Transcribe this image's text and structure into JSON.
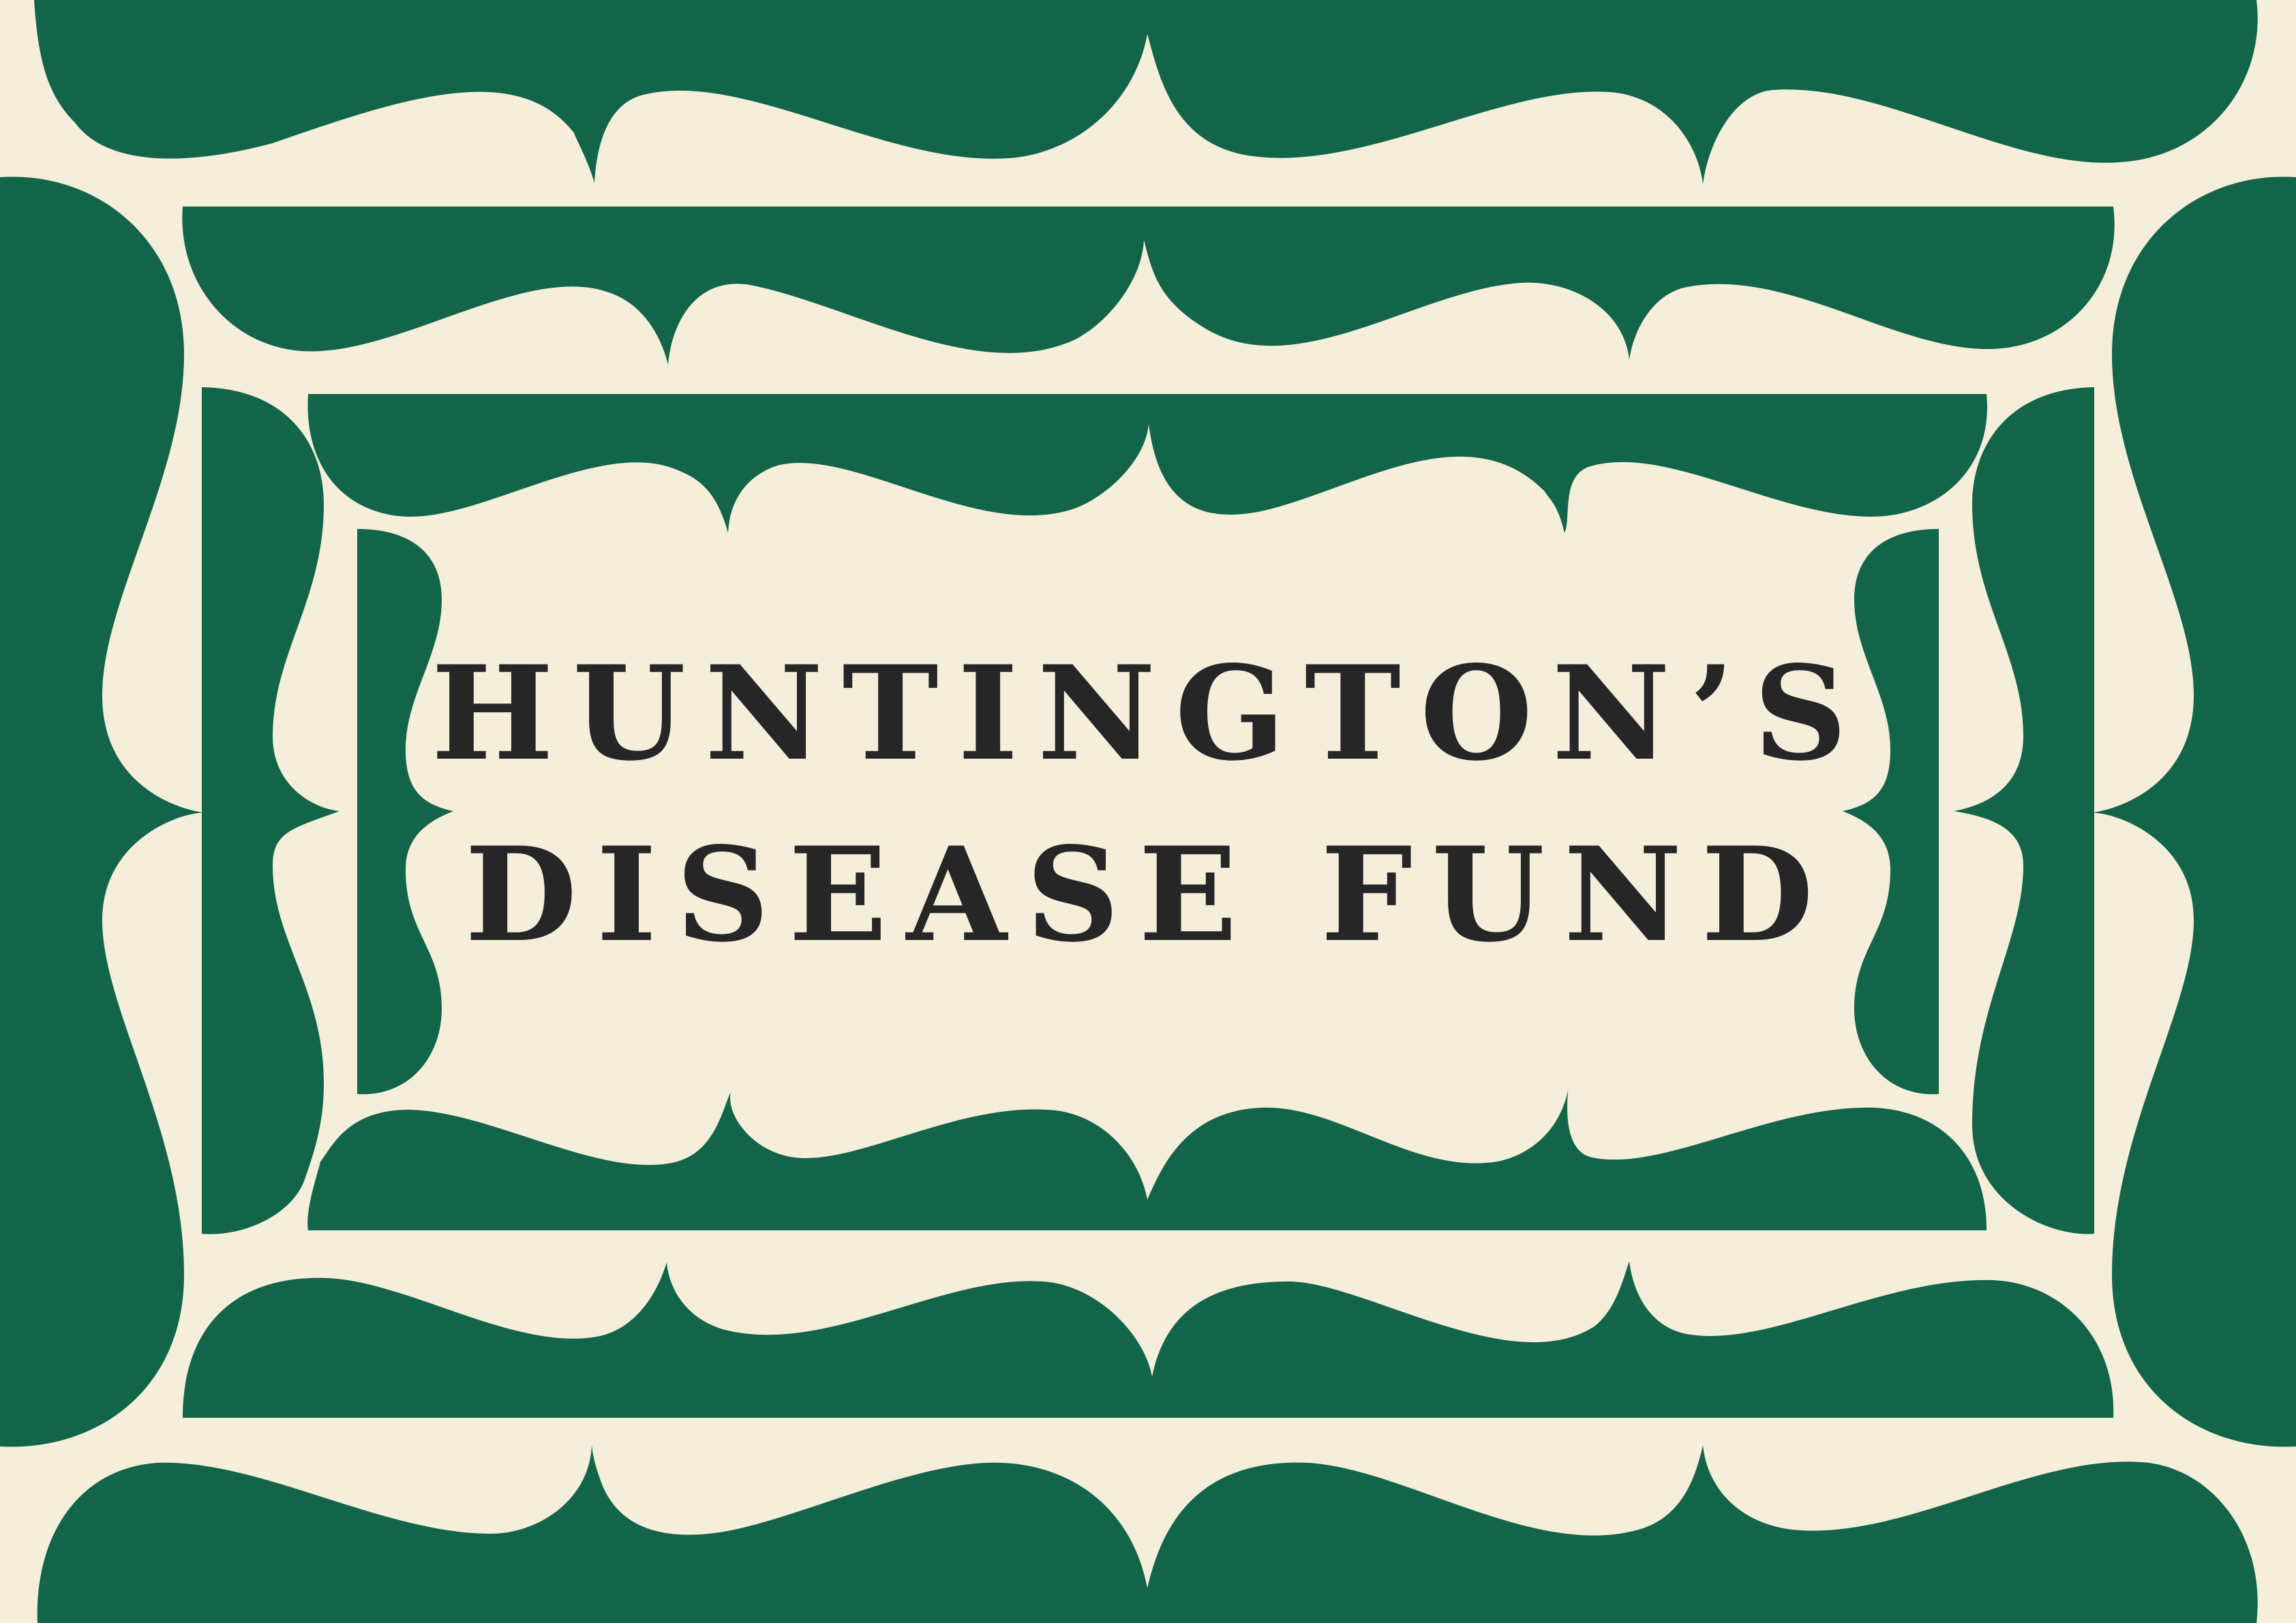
{
  "logo": {
    "line1": "HUNTINGTON’S",
    "line2": "DISEASE FUND"
  },
  "colors": {
    "background": "#f4eedb",
    "frame": "#126548",
    "text": "#262626"
  }
}
